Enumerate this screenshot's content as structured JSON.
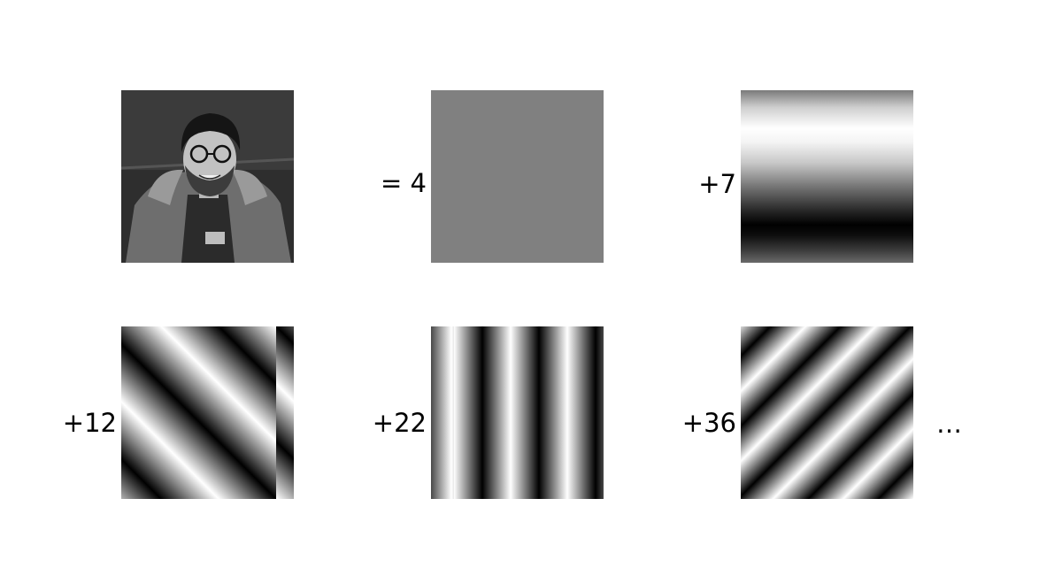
{
  "labels": {
    "const": "= 4",
    "horizontal": "+7",
    "diagonal1": "+12",
    "vertical": "+22",
    "diagonal2": "+36",
    "ellipsis": "…"
  }
}
